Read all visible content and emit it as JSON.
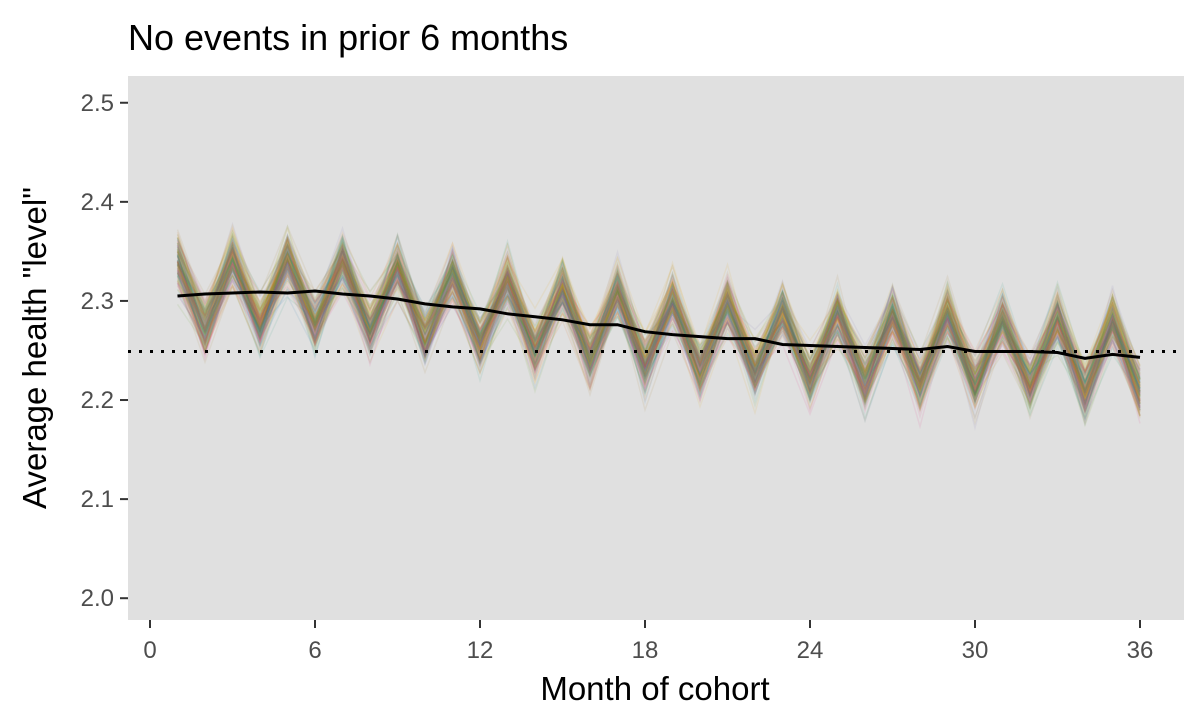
{
  "chart_data": {
    "type": "line",
    "title": "No events in prior 6 months",
    "xlabel": "Month of cohort",
    "ylabel": "Average health \"level\"",
    "xlim": [
      -0.8,
      37.6
    ],
    "ylim": [
      1.978,
      2.527
    ],
    "x_ticks": [
      0,
      6,
      12,
      18,
      24,
      30,
      36
    ],
    "x_tick_labels": [
      "0",
      "6",
      "12",
      "18",
      "24",
      "30",
      "36"
    ],
    "y_ticks": [
      2.0,
      2.1,
      2.2,
      2.3,
      2.4,
      2.5
    ],
    "y_tick_labels": [
      "2.0",
      "2.1",
      "2.2",
      "2.3",
      "2.4",
      "2.5"
    ],
    "grid": false,
    "legend": "none",
    "reference_line": {
      "y": 2.249,
      "style": "dotted",
      "color": "#000000"
    },
    "mean_series": {
      "x": [
        1,
        2,
        3,
        4,
        5,
        6,
        7,
        8,
        9,
        10,
        11,
        12,
        13,
        14,
        15,
        16,
        17,
        18,
        19,
        20,
        21,
        22,
        23,
        24,
        25,
        26,
        27,
        28,
        29,
        30,
        31,
        32,
        33,
        34,
        35,
        36
      ],
      "values": [
        2.305,
        2.307,
        2.308,
        2.309,
        2.308,
        2.31,
        2.307,
        2.305,
        2.302,
        2.297,
        2.294,
        2.292,
        2.287,
        2.284,
        2.281,
        2.276,
        2.276,
        2.269,
        2.266,
        2.264,
        2.262,
        2.262,
        2.256,
        2.255,
        2.254,
        2.253,
        2.252,
        2.251,
        2.254,
        2.249,
        2.249,
        2.249,
        2.248,
        2.242,
        2.246,
        2.243
      ],
      "color": "#000000"
    },
    "simulation_band": {
      "count": 180,
      "description_spread": "many faint simulated trajectories oscillating around the mean",
      "colors": [
        "#e7298a",
        "#7570b3",
        "#1b9e77",
        "#66a61e",
        "#d95f02",
        "#e6ab02",
        "#a6761d",
        "#1f78b4"
      ],
      "opacity": 0.09
    },
    "panel_background": "#e0e0e0"
  }
}
